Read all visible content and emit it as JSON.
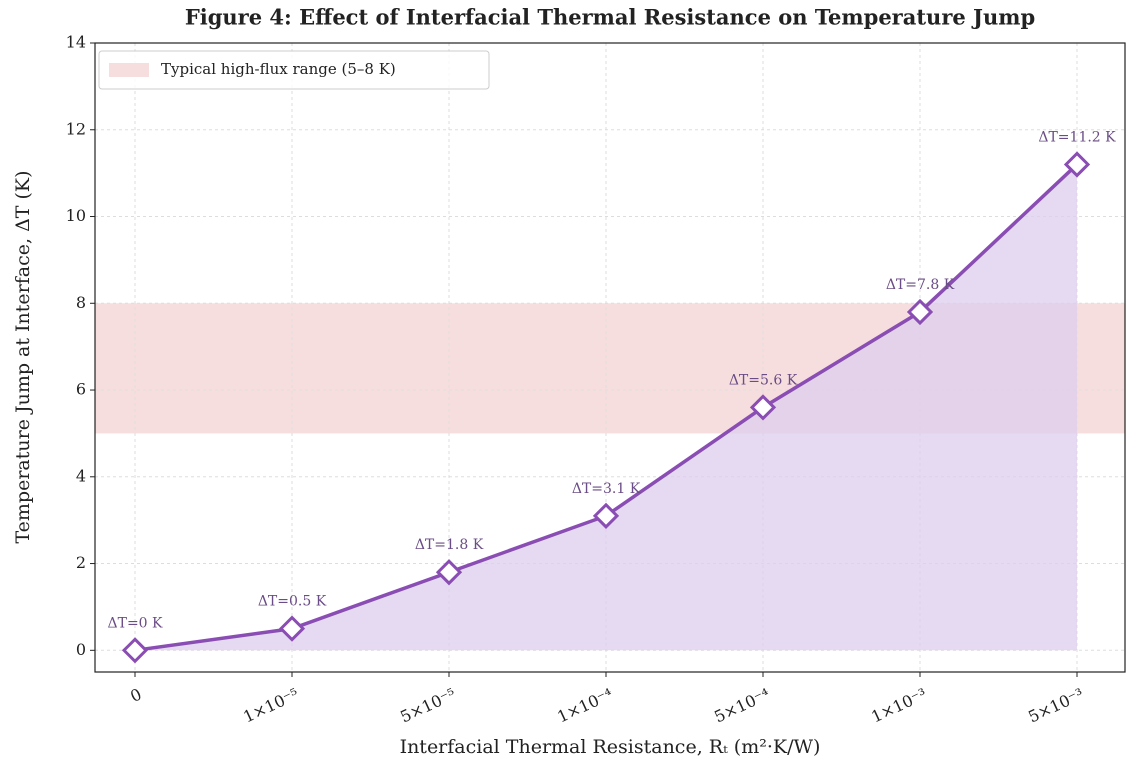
{
  "chart_data": {
    "type": "line",
    "title": "Figure 4: Effect of Interfacial Thermal Resistance on Temperature Jump",
    "xlabel": "Interfacial Thermal Resistance, Rₜ (m²·K/W)",
    "ylabel": "Temperature Jump at Interface, ΔT (K)",
    "categories": [
      "0",
      "1×10⁻⁵",
      "5×10⁻⁵",
      "1×10⁻⁴",
      "5×10⁻⁴",
      "1×10⁻³",
      "5×10⁻³"
    ],
    "values": [
      0,
      0.5,
      1.8,
      3.1,
      5.6,
      7.8,
      11.2
    ],
    "value_labels": [
      "ΔT=0 K",
      "ΔT=0.5 K",
      "ΔT=1.8 K",
      "ΔT=3.1 K",
      "ΔT=5.6 K",
      "ΔT=7.8 K",
      "ΔT=11.2 K"
    ],
    "color": "#8a4db3",
    "fill_color": "#dccdec",
    "band": {
      "label": "Typical high-flux range (5–8 K)",
      "range": [
        5,
        8
      ],
      "color": "#f7dede"
    },
    "ylim": [
      -0.5,
      14
    ],
    "yticks": [
      0,
      2,
      4,
      6,
      8,
      10,
      12,
      14
    ],
    "grid": true,
    "legend": "upper left"
  }
}
